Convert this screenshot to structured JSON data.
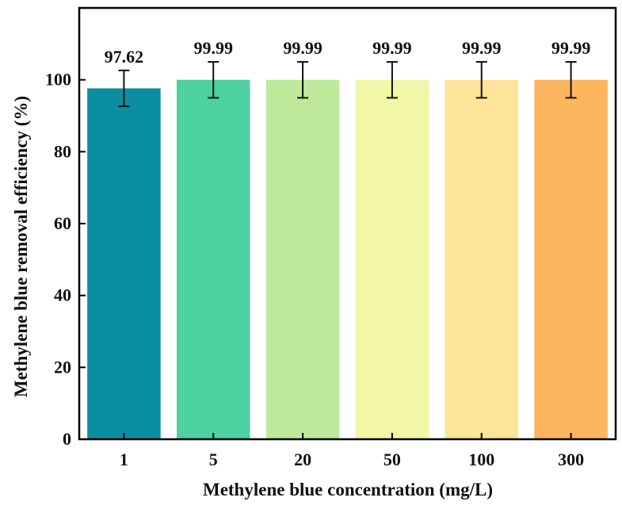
{
  "chart_data": {
    "type": "bar",
    "title": "",
    "xlabel": "Methylene blue concentration (mg/L)",
    "ylabel": "Methylene blue removal efficiency (%)",
    "categories": [
      "1",
      "5",
      "20",
      "50",
      "100",
      "300"
    ],
    "values": [
      97.62,
      99.99,
      99.99,
      99.99,
      99.99,
      99.99
    ],
    "value_labels": [
      "97.62",
      "99.99",
      "99.99",
      "99.99",
      "99.99",
      "99.99"
    ],
    "error": [
      5,
      5,
      5,
      5,
      5,
      5
    ],
    "ylim": [
      0,
      120
    ],
    "yticks": [
      0,
      20,
      40,
      60,
      80,
      100
    ],
    "ytick_labels": [
      "0",
      "20",
      "40",
      "60",
      "80",
      "100"
    ],
    "grid": false,
    "bar_colors": [
      "#0a8fa0",
      "#4ed1a0",
      "#bfe99a",
      "#f2f7a8",
      "#fde498",
      "#fdb55e"
    ]
  }
}
